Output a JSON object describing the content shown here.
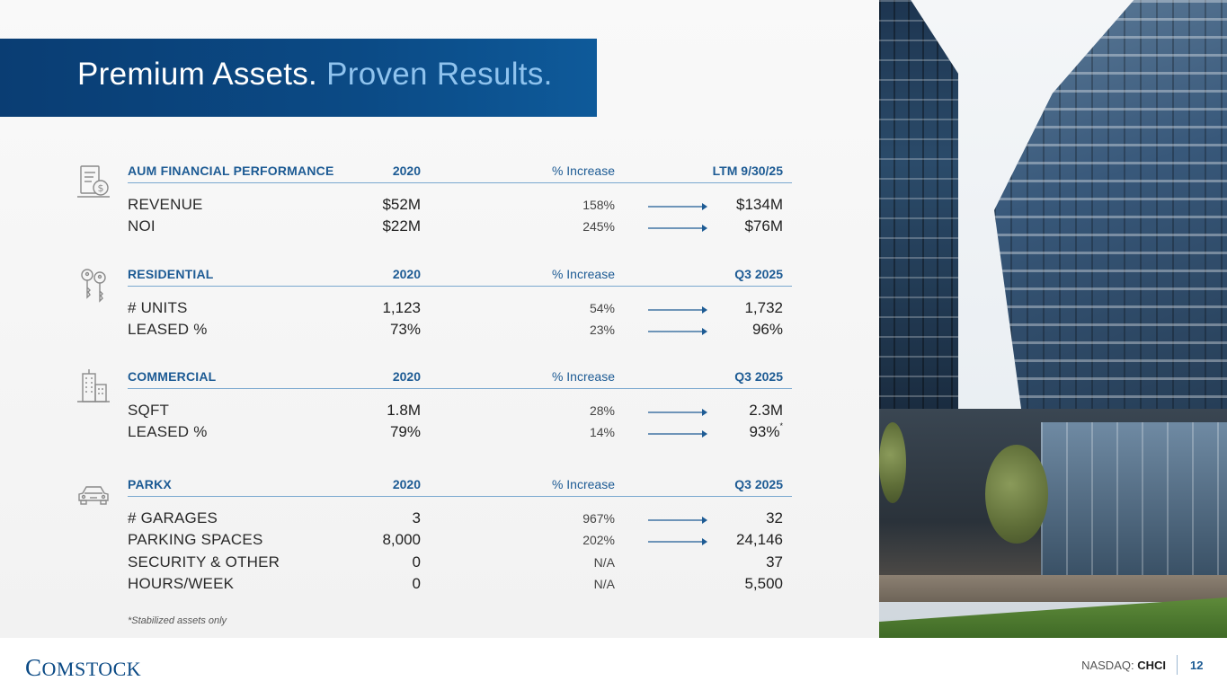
{
  "title": {
    "part1": "Premium Assets.",
    "part2": "Proven Results."
  },
  "sections": [
    {
      "icon": "money-document-icon",
      "header": {
        "label": "AUM FINANCIAL PERFORMANCE",
        "base": "2020",
        "increase": "% Increase",
        "end": "LTM 9/30/25"
      },
      "rows": [
        {
          "label": "REVENUE",
          "base": "$52M",
          "pct": "158%",
          "end": "$134M"
        },
        {
          "label": "NOI",
          "base": "$22M",
          "pct": "245%",
          "end": "$76M"
        }
      ]
    },
    {
      "icon": "keys-icon",
      "header": {
        "label": "RESIDENTIAL",
        "base": "2020",
        "increase": "% Increase",
        "end": "Q3 2025"
      },
      "rows": [
        {
          "label": "# UNITS",
          "base": "1,123",
          "pct": "54%",
          "end": "1,732"
        },
        {
          "label": "LEASED %",
          "base": "73%",
          "pct": "23%",
          "end": "96%"
        }
      ]
    },
    {
      "icon": "office-building-icon",
      "header": {
        "label": "COMMERCIAL",
        "base": "2020",
        "increase": "% Increase",
        "end": "Q3 2025"
      },
      "rows": [
        {
          "label": "SQFT",
          "base": "1.8M",
          "pct": "28%",
          "end": "2.3M"
        },
        {
          "label": "LEASED %",
          "base": "79%",
          "pct": "14%",
          "end": "93%",
          "mark": "*"
        }
      ]
    },
    {
      "icon": "car-icon",
      "header": {
        "label": "PARKX",
        "base": "2020",
        "increase": "% Increase",
        "end": "Q3 2025"
      },
      "rows": [
        {
          "label": "# GARAGES",
          "base": "3",
          "pct": "967%",
          "end": "32"
        },
        {
          "label": "PARKING SPACES",
          "base": "8,000",
          "pct": "202%",
          "end": "24,146"
        },
        {
          "label": "SECURITY & OTHER",
          "base": "0",
          "pct": "N/A",
          "end": "37"
        },
        {
          "label": "HOURS/WEEK",
          "base": "0",
          "pct": "N/A",
          "end": "5,500"
        }
      ]
    }
  ],
  "footnote": "*Stabilized assets only",
  "footer": {
    "brand_initial": "C",
    "brand_rest": "OMSTOCK",
    "ticker_label": "NASDAQ:",
    "ticker": "CHCI",
    "page": "12"
  },
  "colors": {
    "banner": "#0b4a85",
    "accent": "#1d5b94",
    "title_highlight": "#8fc3ee"
  }
}
